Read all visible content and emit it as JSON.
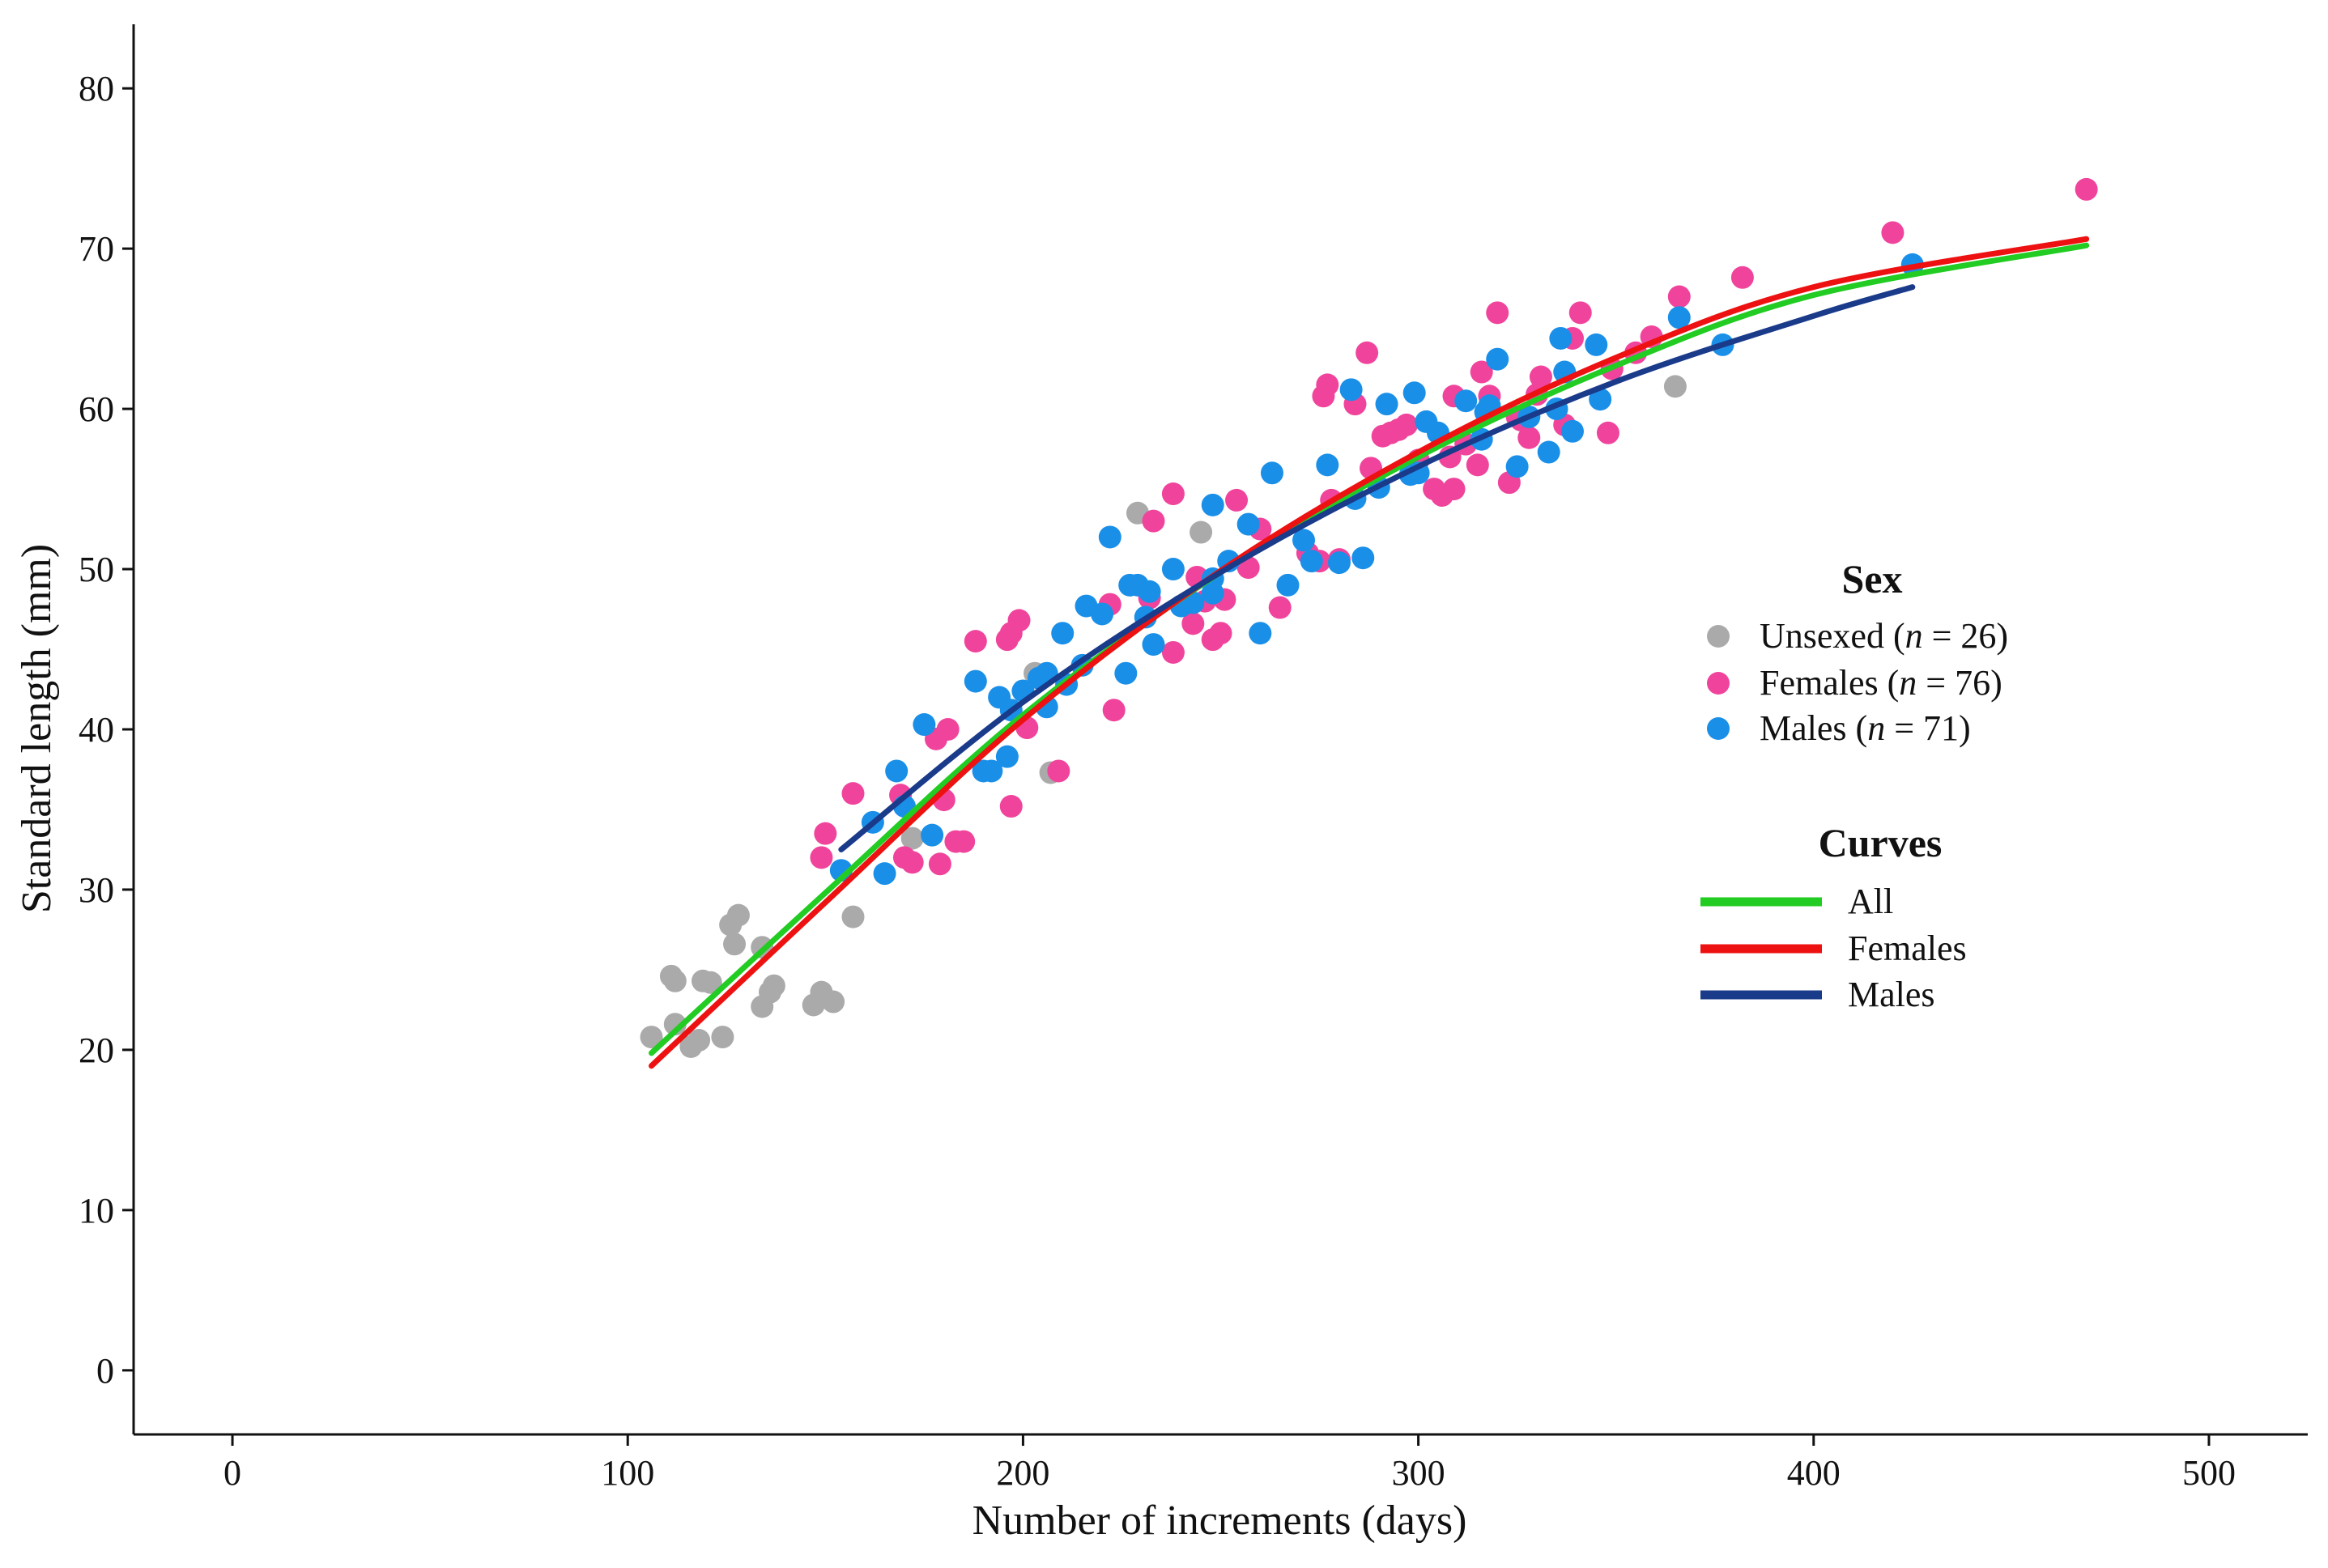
{
  "chart_data": {
    "type": "scatter",
    "title": "",
    "xlabel": "Number of increments (days)",
    "ylabel": "Standard length (mm)",
    "xlim": [
      -25,
      525
    ],
    "ylim": [
      -4,
      84
    ],
    "xticks": [
      0,
      100,
      200,
      300,
      400,
      500
    ],
    "yticks": [
      0,
      10,
      20,
      30,
      40,
      50,
      60,
      70,
      80
    ],
    "grid": false,
    "legend_position": "right",
    "legend_groups": [
      {
        "title": "Sex",
        "entries": [
          {
            "prefix": "Unsexed (",
            "italic": "n",
            "suffix": " = 26)",
            "color": "#aaaaaa"
          },
          {
            "prefix": "Females  (",
            "italic": "n",
            "suffix": " = 76)",
            "color": "#f0449c"
          },
          {
            "prefix": "Males (",
            "italic": "n",
            "suffix": " = 71)",
            "color": "#1a8fe8"
          }
        ]
      },
      {
        "title": "Curves",
        "entries": [
          {
            "label": "All",
            "color": "#22cc22"
          },
          {
            "label": "Females",
            "color": "#ee1111"
          },
          {
            "label": "Males",
            "color": "#1a3a8a"
          }
        ]
      }
    ],
    "series": [
      {
        "name": "Unsexed",
        "kind": "points",
        "color": "#aaaaaa",
        "points": [
          [
            106,
            20.8
          ],
          [
            111,
            24.6
          ],
          [
            112,
            24.3
          ],
          [
            112,
            21.6
          ],
          [
            116,
            20.2
          ],
          [
            118,
            20.6
          ],
          [
            119,
            24.3
          ],
          [
            121,
            24.2
          ],
          [
            124,
            20.8
          ],
          [
            126,
            27.8
          ],
          [
            127,
            26.6
          ],
          [
            128,
            28.4
          ],
          [
            134,
            26.4
          ],
          [
            134,
            22.7
          ],
          [
            136,
            23.6
          ],
          [
            137,
            24.0
          ],
          [
            147,
            22.8
          ],
          [
            149,
            23.6
          ],
          [
            152,
            23.0
          ],
          [
            157,
            28.3
          ],
          [
            172,
            33.2
          ],
          [
            203,
            43.5
          ],
          [
            207,
            37.3
          ],
          [
            229,
            53.5
          ],
          [
            245,
            52.3
          ],
          [
            365,
            61.4
          ]
        ]
      },
      {
        "name": "Females",
        "kind": "points",
        "color": "#f0449c",
        "points": [
          [
            149,
            32.0
          ],
          [
            150,
            33.5
          ],
          [
            157,
            36.0
          ],
          [
            169,
            35.9
          ],
          [
            170,
            32.0
          ],
          [
            172,
            31.7
          ],
          [
            178,
            39.4
          ],
          [
            179,
            31.6
          ],
          [
            180,
            35.6
          ],
          [
            181,
            40.0
          ],
          [
            183,
            33.0
          ],
          [
            185,
            33.0
          ],
          [
            188,
            45.5
          ],
          [
            196,
            45.6
          ],
          [
            197,
            46.0
          ],
          [
            197,
            35.2
          ],
          [
            199,
            46.8
          ],
          [
            201,
            40.1
          ],
          [
            209,
            37.4
          ],
          [
            223,
            41.2
          ],
          [
            232,
            48.2
          ],
          [
            233,
            53.0
          ],
          [
            238,
            54.7
          ],
          [
            238,
            44.8
          ],
          [
            243,
            46.6
          ],
          [
            246,
            48.0
          ],
          [
            248,
            45.6
          ],
          [
            250,
            46.0
          ],
          [
            251,
            48.1
          ],
          [
            254,
            54.3
          ],
          [
            257,
            50.1
          ],
          [
            265,
            47.6
          ],
          [
            272,
            51.0
          ],
          [
            275,
            50.5
          ],
          [
            276,
            60.8
          ],
          [
            277,
            61.5
          ],
          [
            278,
            54.3
          ],
          [
            280,
            50.6
          ],
          [
            284,
            60.3
          ],
          [
            287,
            63.5
          ],
          [
            291,
            58.3
          ],
          [
            293,
            58.5
          ],
          [
            295,
            58.7
          ],
          [
            297,
            59.0
          ],
          [
            304,
            55.0
          ],
          [
            306,
            54.6
          ],
          [
            308,
            57.0
          ],
          [
            309,
            55.0
          ],
          [
            309,
            60.8
          ],
          [
            312,
            57.8
          ],
          [
            315,
            56.5
          ],
          [
            316,
            62.3
          ],
          [
            318,
            60.8
          ],
          [
            320,
            66.0
          ],
          [
            323,
            55.4
          ],
          [
            325,
            59.5
          ],
          [
            326,
            59.3
          ],
          [
            328,
            58.2
          ],
          [
            331,
            62.0
          ],
          [
            337,
            59.0
          ],
          [
            339,
            64.4
          ],
          [
            341,
            66.0
          ],
          [
            348,
            58.5
          ],
          [
            349,
            62.5
          ],
          [
            355,
            63.5
          ],
          [
            359,
            64.5
          ],
          [
            366,
            67.0
          ],
          [
            382,
            68.2
          ],
          [
            420,
            71.0
          ],
          [
            469,
            73.7
          ],
          [
            244,
            49.5
          ],
          [
            260,
            52.5
          ],
          [
            288,
            56.3
          ],
          [
            300,
            56.8
          ],
          [
            330,
            60.9
          ],
          [
            222,
            47.8
          ]
        ]
      },
      {
        "name": "Males",
        "kind": "points",
        "color": "#1a8fe8",
        "points": [
          [
            154,
            31.2
          ],
          [
            162,
            34.2
          ],
          [
            165,
            31.0
          ],
          [
            168,
            37.4
          ],
          [
            170,
            35.2
          ],
          [
            175,
            40.3
          ],
          [
            177,
            33.4
          ],
          [
            188,
            43.0
          ],
          [
            190,
            37.4
          ],
          [
            192,
            37.4
          ],
          [
            194,
            42.0
          ],
          [
            196,
            38.3
          ],
          [
            197,
            41.2
          ],
          [
            200,
            42.4
          ],
          [
            204,
            43.2
          ],
          [
            206,
            41.4
          ],
          [
            210,
            46.0
          ],
          [
            211,
            42.8
          ],
          [
            215,
            44.0
          ],
          [
            216,
            47.7
          ],
          [
            220,
            47.2
          ],
          [
            222,
            52.0
          ],
          [
            226,
            43.5
          ],
          [
            227,
            49.0
          ],
          [
            229,
            49.0
          ],
          [
            231,
            47.0
          ],
          [
            233,
            45.3
          ],
          [
            238,
            50.0
          ],
          [
            240,
            47.7
          ],
          [
            248,
            54.0
          ],
          [
            248,
            49.4
          ],
          [
            248,
            48.5
          ],
          [
            257,
            52.8
          ],
          [
            260,
            46.0
          ],
          [
            263,
            56.0
          ],
          [
            267,
            49.0
          ],
          [
            271,
            51.8
          ],
          [
            273,
            50.5
          ],
          [
            280,
            50.4
          ],
          [
            283,
            61.2
          ],
          [
            284,
            54.4
          ],
          [
            286,
            50.7
          ],
          [
            290,
            55.1
          ],
          [
            292,
            60.3
          ],
          [
            298,
            55.9
          ],
          [
            299,
            61.0
          ],
          [
            300,
            56.0
          ],
          [
            302,
            59.2
          ],
          [
            312,
            60.5
          ],
          [
            316,
            58.1
          ],
          [
            317,
            59.8
          ],
          [
            320,
            63.1
          ],
          [
            325,
            56.4
          ],
          [
            328,
            59.5
          ],
          [
            333,
            57.3
          ],
          [
            335,
            60.0
          ],
          [
            336,
            64.4
          ],
          [
            337,
            62.3
          ],
          [
            339,
            58.6
          ],
          [
            345,
            64.0
          ],
          [
            346,
            60.6
          ],
          [
            366,
            65.7
          ],
          [
            377,
            64.0
          ],
          [
            425,
            69.0
          ],
          [
            206,
            43.5
          ],
          [
            243,
            47.9
          ],
          [
            277,
            56.5
          ],
          [
            305,
            58.5
          ],
          [
            318,
            60.2
          ],
          [
            252,
            50.5
          ],
          [
            232,
            48.6
          ]
        ]
      },
      {
        "name": "All",
        "kind": "curve",
        "color": "#22cc22",
        "points": [
          [
            106,
            19.8
          ],
          [
            150,
            29.8
          ],
          [
            200,
            40.9
          ],
          [
            250,
            49.8
          ],
          [
            300,
            57.0
          ],
          [
            350,
            62.7
          ],
          [
            400,
            67.1
          ],
          [
            469,
            70.2
          ]
        ]
      },
      {
        "name": "Females (curve)",
        "kind": "curve",
        "color": "#ee1111",
        "points": [
          [
            106,
            19.0
          ],
          [
            150,
            29.2
          ],
          [
            200,
            40.6
          ],
          [
            250,
            49.9
          ],
          [
            300,
            57.3
          ],
          [
            350,
            63.2
          ],
          [
            400,
            67.6
          ],
          [
            469,
            70.6
          ]
        ]
      },
      {
        "name": "Males (curve)",
        "kind": "curve",
        "color": "#1a3a8a",
        "points": [
          [
            154,
            32.5
          ],
          [
            200,
            41.7
          ],
          [
            250,
            49.8
          ],
          [
            300,
            56.4
          ],
          [
            350,
            61.7
          ],
          [
            400,
            65.8
          ],
          [
            425,
            67.6
          ]
        ]
      }
    ]
  }
}
